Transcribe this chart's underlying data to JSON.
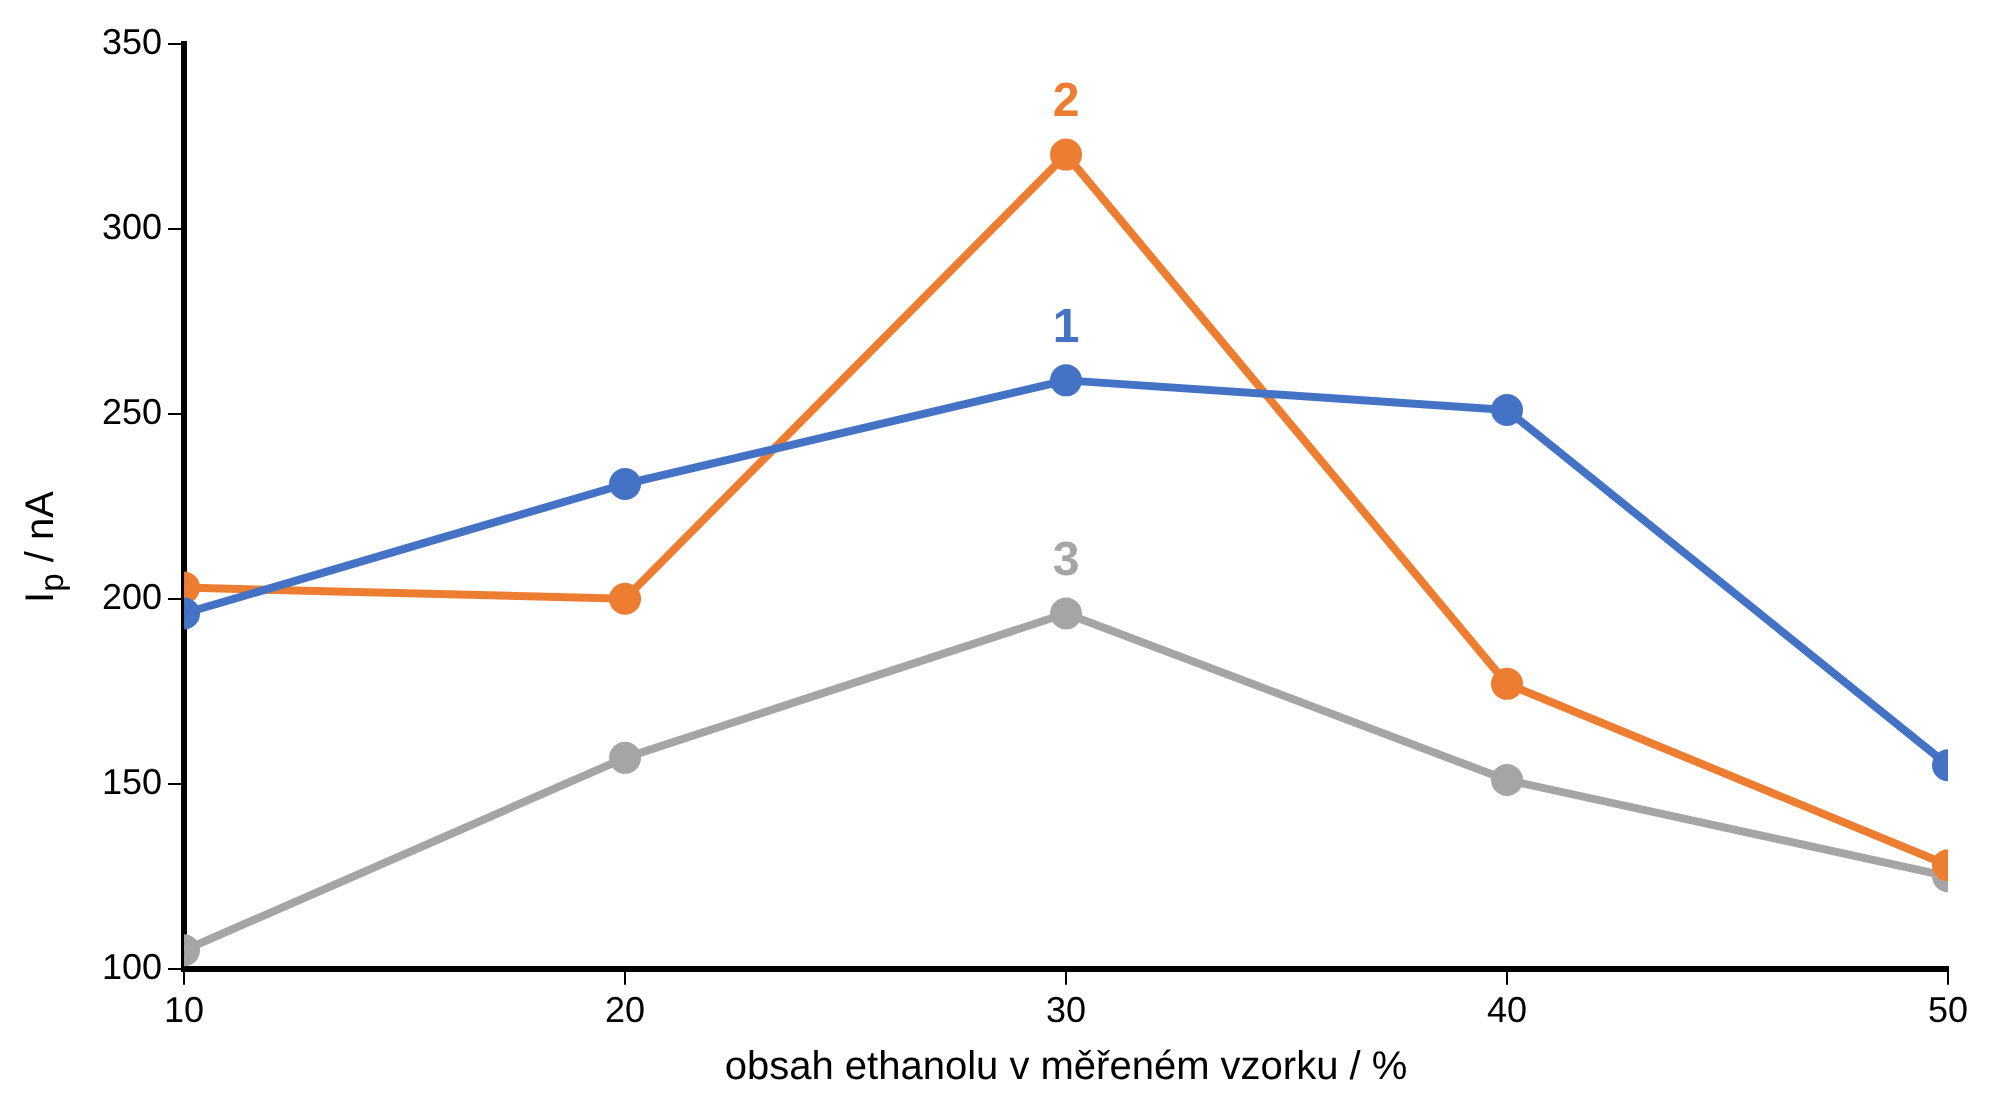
{
  "chart_data": {
    "type": "line",
    "xlabel": "obsah ethanolu v měřeném vzorku / %",
    "ylabel": "I$_{p}$ / nA",
    "x": [
      10,
      20,
      30,
      40,
      50
    ],
    "xlim": [
      10,
      50
    ],
    "xticks": [
      10,
      20,
      30,
      40,
      50
    ],
    "ylim": [
      100,
      350
    ],
    "yticks": [
      100,
      150,
      200,
      250,
      300,
      350
    ],
    "grid": false,
    "legend": false,
    "marker": "circle",
    "line_style": "solid",
    "series": [
      {
        "name": "1",
        "color": "#4472c4",
        "values": [
          196,
          231,
          259,
          251,
          155
        ]
      },
      {
        "name": "2",
        "color": "#ed7d31",
        "values": [
          203,
          200,
          320,
          177,
          128
        ]
      },
      {
        "name": "3",
        "color": "#a5a5a5",
        "values": [
          105,
          157,
          196,
          151,
          125
        ]
      }
    ]
  }
}
